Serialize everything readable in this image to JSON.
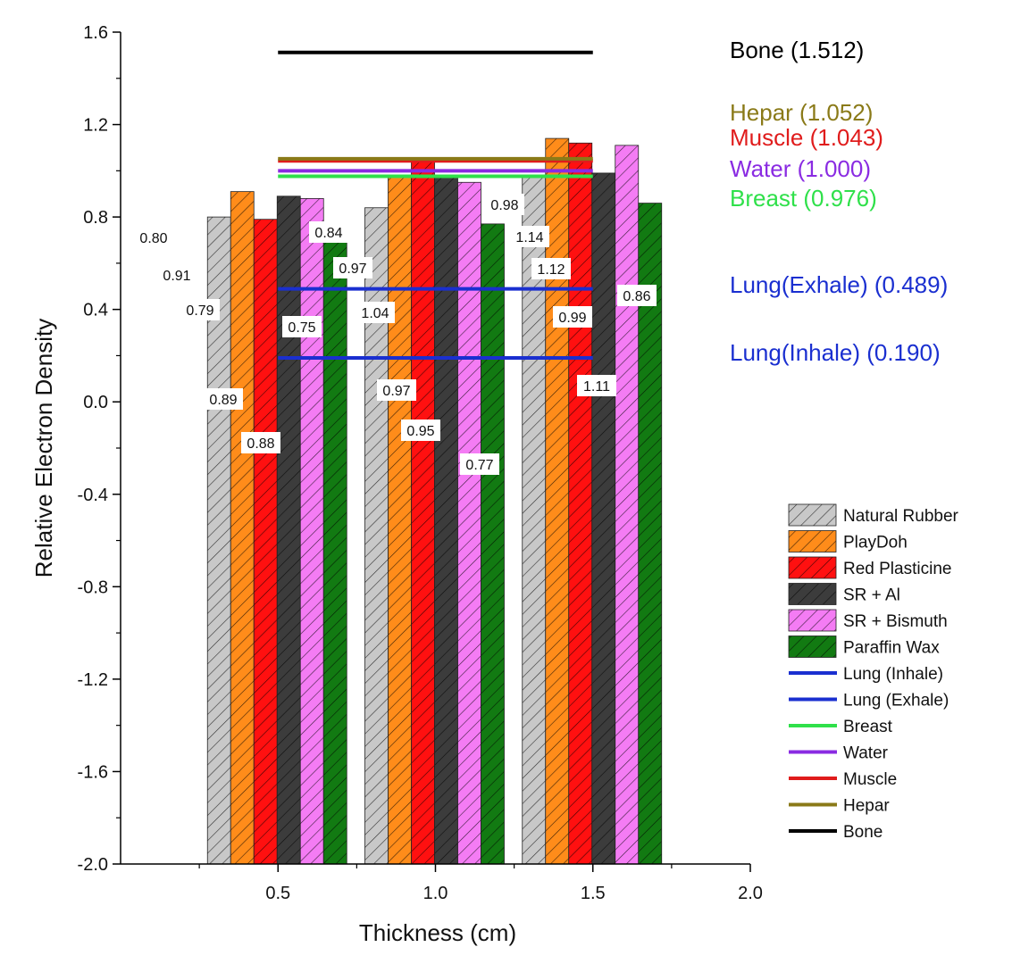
{
  "chart_data": {
    "type": "bar",
    "xlabel": "Thickness (cm)",
    "ylabel": "Relative Electron Density",
    "xlim": [
      0.0,
      2.0
    ],
    "ylim": [
      -2.0,
      1.6
    ],
    "x_ticks": [
      "0.5",
      "1.0",
      "1.5",
      "2.0"
    ],
    "y_ticks": [
      "1.6",
      "1.2",
      "0.8",
      "0.4",
      "0.0",
      "-0.4",
      "-0.8",
      "-1.2",
      "-1.6",
      "-2.0"
    ],
    "categories": [
      "0.5",
      "1.0",
      "1.5"
    ],
    "grid": false,
    "legend_position": "bottom-right",
    "series": [
      {
        "name": "Natural Rubber",
        "color": "#c8c8c8",
        "values": [
          0.8,
          0.84,
          0.98
        ],
        "labels": [
          "0.80",
          "0.84",
          "0.98"
        ]
      },
      {
        "name": "PlayDoh",
        "color": "#ff8c1a",
        "values": [
          0.91,
          0.97,
          1.14
        ],
        "labels": [
          "0.91",
          "0.97",
          "1.14"
        ]
      },
      {
        "name": "Red Plasticine",
        "color": "#ff1010",
        "values": [
          0.79,
          1.04,
          1.12
        ],
        "labels": [
          "0.79",
          "1.04",
          "1.12"
        ]
      },
      {
        "name": "SR + Al",
        "color": "#3c3c3c",
        "values": [
          0.89,
          0.97,
          0.99
        ],
        "labels": [
          "0.89",
          "0.97",
          "0.99"
        ]
      },
      {
        "name": "SR + Bismuth",
        "color": "#f47cf4",
        "values": [
          0.88,
          0.95,
          1.11
        ],
        "labels": [
          "0.88",
          "0.95",
          "1.11"
        ]
      },
      {
        "name": "Paraffin Wax",
        "color": "#127a12",
        "values": [
          0.75,
          0.77,
          0.86
        ],
        "labels": [
          "0.75",
          "0.77",
          "0.86"
        ]
      }
    ],
    "reference_lines": [
      {
        "name": "Lung (Inhale)",
        "color": "#1a2fd0",
        "value": 0.19,
        "annotation": "Lung(Inhale) (0.190)"
      },
      {
        "name": "Lung (Exhale)",
        "color": "#1a2fd0",
        "value": 0.489,
        "annotation": "Lung(Exhale) (0.489)"
      },
      {
        "name": "Breast",
        "color": "#2fe04a",
        "value": 0.976,
        "annotation": "Breast (0.976)"
      },
      {
        "name": "Water",
        "color": "#8a2be2",
        "value": 1.0,
        "annotation": "Water (1.000)"
      },
      {
        "name": "Muscle",
        "color": "#e01c1c",
        "value": 1.043,
        "annotation": "Muscle (1.043)"
      },
      {
        "name": "Hepar",
        "color": "#8a7a18",
        "value": 1.052,
        "annotation": "Hepar (1.052)"
      },
      {
        "name": "Bone",
        "color": "#000000",
        "value": 1.512,
        "annotation": "Bone (1.512)"
      }
    ],
    "reference_line_x_range": [
      0.5,
      1.5
    ]
  }
}
